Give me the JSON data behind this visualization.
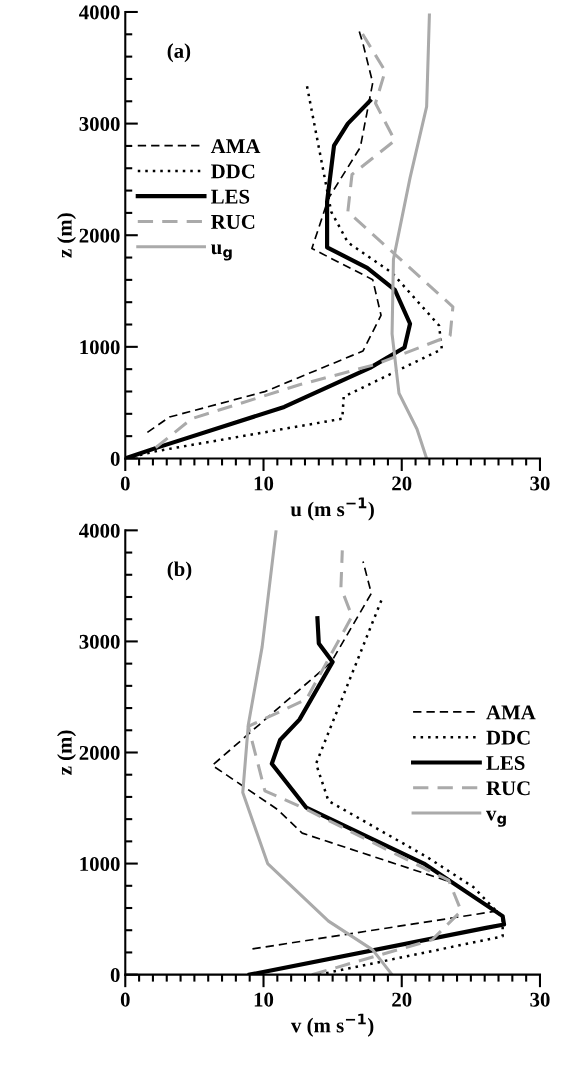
{
  "chart_data": [
    {
      "type": "line",
      "annotations": [
        "(a)"
      ],
      "xlabel": "u (m s$^{−1}$)",
      "ylabel": "z (m)",
      "xlim": [
        0,
        30
      ],
      "xticks": [
        0,
        10,
        20,
        30
      ],
      "ylim": [
        0,
        4000
      ],
      "yticks": [
        0,
        1000,
        2000,
        3000,
        4000
      ],
      "grid": false,
      "legend": "left",
      "marker": "none",
      "series": [
        {
          "name": "AMA",
          "color": "#000000",
          "line_style": "dashed",
          "x": [
            1.6,
            3.2,
            10.1,
            17.2,
            18.5,
            17.9,
            13.5,
            14.7,
            17.0,
            17.9,
            17.2,
            16.9
          ],
          "values": [
            234,
            371,
            599,
            963,
            1283,
            1602,
            1881,
            2331,
            2787,
            3365,
            3714,
            3836
          ]
        },
        {
          "name": "DDC",
          "color": "#000000",
          "line_style": "dotted",
          "x": [
            0,
            2.3,
            15.7,
            15.8,
            22.9,
            22.7,
            19.3,
            16.1,
            14.9,
            13.1
          ],
          "values": [
            0,
            67,
            356,
            553,
            979,
            1191,
            1663,
            1936,
            2210,
            3365
          ]
        },
        {
          "name": "LES",
          "color": "#000000",
          "line_style": "solid",
          "x": [
            0,
            2.3,
            11.5,
            17.7,
            20.2,
            20.6,
            19.5,
            17.5,
            14.6,
            14.6,
            15.1,
            16.1,
            17.7
          ],
          "values": [
            0,
            97,
            462,
            812,
            994,
            1207,
            1511,
            1708,
            1891,
            2301,
            2802,
            3000,
            3204
          ]
        },
        {
          "name": "RUC",
          "color": "#aaaaaa",
          "line_style": "dashed",
          "x": [
            2.2,
            4.8,
            12.6,
            18.1,
            23.5,
            23.7,
            16.1,
            16.4,
            19.5,
            18.1,
            18.8,
            17.0
          ],
          "values": [
            97,
            356,
            660,
            842,
            1100,
            1359,
            2210,
            2544,
            2848,
            3182,
            3471,
            3836
          ]
        },
        {
          "name": "u$_{g}$",
          "color": "#aaaaaa",
          "line_style": "solid",
          "x": [
            21.8,
            21.1,
            19.8,
            19.5,
            19.3,
            19.4,
            20.6,
            21.8,
            22.0
          ],
          "values": [
            0,
            264,
            584,
            903,
            1116,
            1784,
            2514,
            3152,
            3973
          ]
        }
      ]
    },
    {
      "type": "line",
      "annotations": [
        "(b)"
      ],
      "xlabel": "v (m s$^{−1}$)",
      "ylabel": "z (m)",
      "xlim": [
        0,
        30
      ],
      "xticks": [
        0,
        10,
        20,
        30
      ],
      "ylim": [
        0,
        4000
      ],
      "yticks": [
        0,
        1000,
        2000,
        3000,
        4000
      ],
      "grid": false,
      "legend": "right",
      "marker": "none",
      "series": [
        {
          "name": "AMA",
          "color": "#000000",
          "line_style": "dashed",
          "x": [
            9.2,
            26.9,
            23.6,
            12.8,
            11.0,
            6.3,
            14.9,
            17.8,
            17.2
          ],
          "values": [
            232,
            573,
            832,
            1274,
            1488,
            1884,
            2814,
            3433,
            3720
          ]
        },
        {
          "name": "DDC",
          "color": "#000000",
          "line_style": "dotted",
          "x": [
            14.0,
            27.3,
            27.3,
            25.2,
            21.8,
            14.7,
            13.8,
            18.6
          ],
          "values": [
            0,
            345,
            512,
            787,
            1061,
            1564,
            1899,
            3393
          ]
        },
        {
          "name": "LES",
          "color": "#000000",
          "line_style": "solid",
          "x": [
            9.0,
            26.1,
            27.4,
            27.3,
            21.6,
            13.1,
            10.6,
            11.2,
            12.6,
            15.0,
            14.0,
            13.9
          ],
          "values": [
            0,
            421,
            451,
            527,
            1000,
            1503,
            1899,
            2113,
            2296,
            2814,
            2982,
            3210
          ]
        },
        {
          "name": "RUC",
          "color": "#aaaaaa",
          "line_style": "dashed",
          "x": [
            13.5,
            22.2,
            24.3,
            23.4,
            13.1,
            10.1,
            8.9,
            13.1,
            16.4,
            15.6,
            15.7
          ],
          "values": [
            0,
            314,
            573,
            848,
            1488,
            1655,
            2235,
            2479,
            3226,
            3485,
            3820
          ]
        },
        {
          "name": "v$_{g}$",
          "color": "#aaaaaa",
          "line_style": "solid",
          "x": [
            19.3,
            17.9,
            14.7,
            10.3,
            8.5,
            8.9,
            9.9,
            10.9
          ],
          "values": [
            0,
            223,
            482,
            1000,
            1640,
            2250,
            2951,
            3988
          ]
        }
      ]
    }
  ]
}
